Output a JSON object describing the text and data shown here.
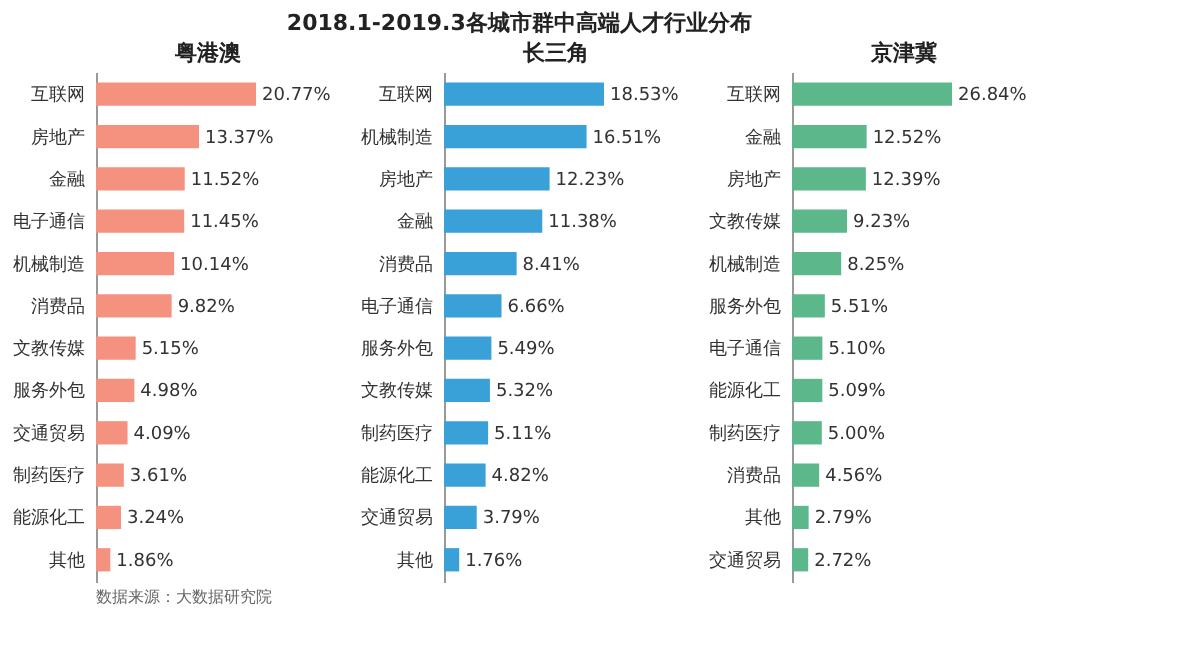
{
  "chart_data": [
    {
      "type": "other",
      "title": "2018.1-2019.3各城市群中高端人才行业分布"
    },
    {
      "type": "bar",
      "orientation": "horizontal",
      "subtitle": "粤港澳",
      "categories": [
        "互联网",
        "房地产",
        "金融",
        "电子通信",
        "机械制造",
        "消费品",
        "文教传媒",
        "服务外包",
        "交通贸易",
        "制药医疗",
        "能源化工",
        "其他"
      ],
      "values": [
        20.77,
        13.37,
        11.52,
        11.45,
        10.14,
        9.82,
        5.15,
        4.98,
        4.09,
        3.61,
        3.24,
        1.86
      ],
      "value_labels": [
        "20.77%",
        "13.37%",
        "11.52%",
        "11.45%",
        "10.14%",
        "9.82%",
        "5.15%",
        "4.98%",
        "4.09%",
        "3.61%",
        "3.24%",
        "1.86%"
      ],
      "color": "#f4917f",
      "annotations": [
        "数据来源：大数据研究院"
      ]
    },
    {
      "type": "bar",
      "orientation": "horizontal",
      "subtitle": "长三角",
      "categories": [
        "互联网",
        "机械制造",
        "房地产",
        "金融",
        "消费品",
        "电子通信",
        "服务外包",
        "文教传媒",
        "制药医疗",
        "能源化工",
        "交通贸易",
        "其他"
      ],
      "values": [
        18.53,
        16.51,
        12.23,
        11.38,
        8.41,
        6.66,
        5.49,
        5.32,
        5.11,
        4.82,
        3.79,
        1.76
      ],
      "value_labels": [
        "18.53%",
        "16.51%",
        "12.23%",
        "11.38%",
        "8.41%",
        "6.66%",
        "5.49%",
        "5.32%",
        "5.11%",
        "4.82%",
        "3.79%",
        "1.76%"
      ],
      "color": "#3aa0d8"
    },
    {
      "type": "bar",
      "orientation": "horizontal",
      "subtitle": "京津冀",
      "categories": [
        "互联网",
        "金融",
        "房地产",
        "文教传媒",
        "机械制造",
        "服务外包",
        "电子通信",
        "能源化工",
        "制药医疗",
        "消费品",
        "其他",
        "交通贸易"
      ],
      "values": [
        26.84,
        12.52,
        12.39,
        9.23,
        8.25,
        5.51,
        5.1,
        5.09,
        5.0,
        4.56,
        2.79,
        2.72
      ],
      "value_labels": [
        "26.84%",
        "12.52%",
        "12.39%",
        "9.23%",
        "8.25%",
        "5.51%",
        "5.10%",
        "5.09%",
        "5.00%",
        "4.56%",
        "2.79%",
        "2.72%"
      ],
      "color": "#5cb88a"
    }
  ]
}
